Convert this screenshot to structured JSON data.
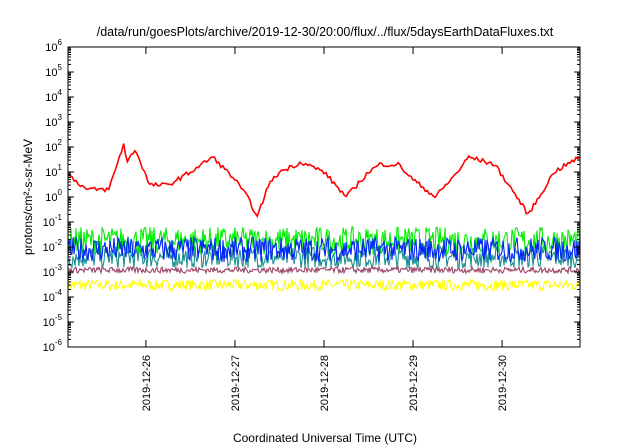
{
  "chart_data": {
    "type": "line",
    "title": "/data/run/goesPlots/archive/2019-12-30/20:00/flux/../flux/5daysEarthDataFluxes.txt",
    "xlabel": "Coordinated Universal Time (UTC)",
    "ylabel": "protons/cm²-s-sr-MeV",
    "yscale": "log",
    "ylim": [
      1e-06,
      1000000.0
    ],
    "xlim": [
      "2019-12-25 03:00",
      "2019-12-30 21:00"
    ],
    "x_ticks": [
      "2019-12-26",
      "2019-12-27",
      "2019-12-28",
      "2019-12-29",
      "2019-12-30"
    ],
    "y_ticks": [
      {
        "value": 1000000.0,
        "base": "10",
        "exp": "6"
      },
      {
        "value": 100000.0,
        "base": "10",
        "exp": "5"
      },
      {
        "value": 10000.0,
        "base": "10",
        "exp": "4"
      },
      {
        "value": 1000.0,
        "base": "10",
        "exp": "3"
      },
      {
        "value": 100.0,
        "base": "10",
        "exp": "2"
      },
      {
        "value": 10.0,
        "base": "10",
        "exp": "1"
      },
      {
        "value": 1.0,
        "base": "10",
        "exp": "0"
      },
      {
        "value": 0.1,
        "base": "10",
        "exp": "-1"
      },
      {
        "value": 0.01,
        "base": "10",
        "exp": "-2"
      },
      {
        "value": 0.001,
        "base": "10",
        "exp": "-3"
      },
      {
        "value": 0.0001,
        "base": "10",
        "exp": "-4"
      },
      {
        "value": 1e-05,
        "base": "10",
        "exp": "-5"
      },
      {
        "value": 1e-06,
        "base": "10",
        "exp": "-6"
      }
    ],
    "grid": false,
    "legend": "none",
    "series": [
      {
        "color": "#ff0000",
        "x": [
          "2019-12-25 03:00",
          "2019-12-25 08:00",
          "2019-12-25 14:00",
          "2019-12-25 18:00",
          "2019-12-25 19:00",
          "2019-12-25 21:00",
          "2019-12-25 22:00",
          "2019-12-26 01:00",
          "2019-12-26 06:00",
          "2019-12-26 12:00",
          "2019-12-26 18:00",
          "2019-12-27 00:00",
          "2019-12-27 04:00",
          "2019-12-27 06:00",
          "2019-12-27 09:00",
          "2019-12-27 12:00",
          "2019-12-27 18:00",
          "2019-12-28 00:00",
          "2019-12-28 06:00",
          "2019-12-28 12:00",
          "2019-12-28 15:00",
          "2019-12-28 20:00",
          "2019-12-29 00:00",
          "2019-12-29 06:00",
          "2019-12-29 12:00",
          "2019-12-29 15:00",
          "2019-12-29 22:00",
          "2019-12-30 04:00",
          "2019-12-30 07:00",
          "2019-12-30 10:00",
          "2019-12-30 14:00",
          "2019-12-30 21:00"
        ],
        "y": [
          8,
          2,
          2,
          130,
          25,
          80,
          40,
          3,
          3,
          10,
          40,
          5,
          0.7,
          0.15,
          3,
          10,
          25,
          10,
          1,
          10,
          20,
          20,
          5,
          1,
          10,
          40,
          20,
          1,
          0.2,
          1,
          10,
          40
        ]
      },
      {
        "color": "#00ee00",
        "x": [
          "2019-12-25 03:00",
          "2019-12-30 21:00"
        ],
        "y": [
          0.018,
          0.018
        ]
      },
      {
        "color": "#1a9090",
        "x": [
          "2019-12-25 03:00",
          "2019-12-30 21:00"
        ],
        "y": [
          0.004,
          0.004
        ]
      },
      {
        "color": "#0022ff",
        "x": [
          "2019-12-25 03:00",
          "2019-12-30 21:00"
        ],
        "y": [
          0.008,
          0.008
        ]
      },
      {
        "color": "#994466",
        "x": [
          "2019-12-25 03:00",
          "2019-12-30 21:00"
        ],
        "y": [
          0.0012,
          0.0012
        ]
      },
      {
        "color": "#ffff00",
        "x": [
          "2019-12-25 03:00",
          "2019-12-30 21:00"
        ],
        "y": [
          0.0003,
          0.0003
        ]
      }
    ]
  }
}
